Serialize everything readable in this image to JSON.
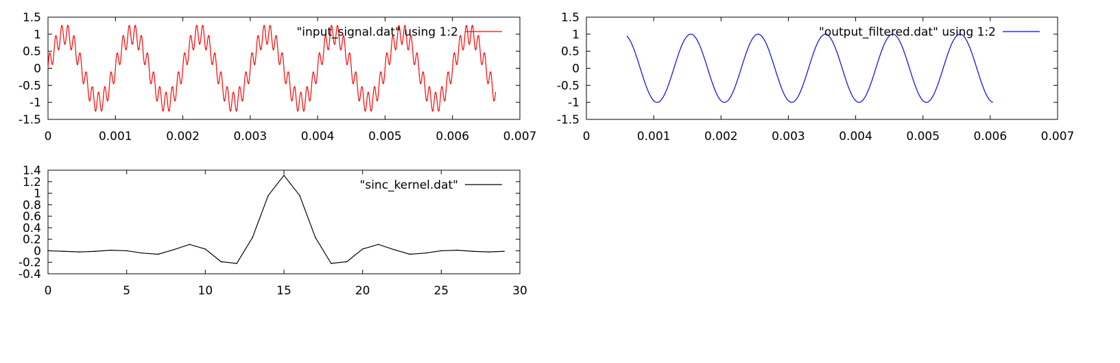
{
  "chart_data": [
    {
      "type": "line",
      "title": "",
      "xlabel": "",
      "ylabel": "",
      "xlim": [
        0,
        0.007
      ],
      "ylim": [
        -1.5,
        1.5
      ],
      "xticks": [
        "0",
        "0.001",
        "0.002",
        "0.003",
        "0.004",
        "0.005",
        "0.006",
        "0.007"
      ],
      "yticks": [
        "-1.5",
        "-1",
        "-0.5",
        "0",
        "0.5",
        "1",
        "1.5"
      ],
      "legend_position": "top-right",
      "grid": false,
      "series": [
        {
          "name": "\"input_signal.dat\" using 1:2",
          "color": "#ff0000",
          "generator": {
            "kind": "sum-of-sines",
            "components": [
              {
                "amplitude": 1.0,
                "frequency_hz": 1000
              },
              {
                "amplitude": 0.3,
                "frequency_hz": 11000
              }
            ],
            "x_start": 0,
            "x_end": 0.00664
          }
        }
      ]
    },
    {
      "type": "line",
      "title": "",
      "xlabel": "",
      "ylabel": "",
      "xlim": [
        0,
        0.007
      ],
      "ylim": [
        -1.5,
        1.5
      ],
      "xticks": [
        "0",
        "0.001",
        "0.002",
        "0.003",
        "0.004",
        "0.005",
        "0.006",
        "0.007"
      ],
      "yticks": [
        "-1.5",
        "-1",
        "-0.5",
        "0",
        "0.5",
        "1",
        "1.5"
      ],
      "legend_position": "top-right",
      "grid": false,
      "series": [
        {
          "name": "\"output_filtered.dat\" using 1:2",
          "color": "#0000ff",
          "generator": {
            "kind": "sine",
            "amplitude": 1.0,
            "frequency_hz": 1000,
            "phase_shift_s": 0.0003,
            "x_start": 0.0006,
            "x_end": 0.00604
          }
        }
      ]
    },
    {
      "type": "line",
      "title": "",
      "xlabel": "",
      "ylabel": "",
      "xlim": [
        0,
        30
      ],
      "ylim": [
        -0.4,
        1.4
      ],
      "xticks": [
        "0",
        "5",
        "10",
        "15",
        "20",
        "25",
        "30"
      ],
      "yticks": [
        "-0.4",
        "-0.2",
        "0",
        "0.2",
        "0.4",
        "0.6",
        "0.8",
        "1",
        "1.2",
        "1.4"
      ],
      "legend_position": "top-right",
      "grid": false,
      "series": [
        {
          "name": "\"sinc_kernel.dat\"",
          "color": "#000000",
          "x": [
            0,
            1,
            2,
            3,
            4,
            5,
            6,
            7,
            8,
            9,
            10,
            11,
            12,
            13,
            14,
            15,
            16,
            17,
            18,
            19,
            20,
            21,
            22,
            23,
            24,
            25,
            26,
            27,
            28,
            29
          ],
          "y": [
            0.0,
            -0.01,
            -0.02,
            -0.01,
            0.01,
            0.0,
            -0.04,
            -0.06,
            0.02,
            0.11,
            0.03,
            -0.19,
            -0.22,
            0.23,
            0.96,
            1.31,
            0.96,
            0.23,
            -0.22,
            -0.19,
            0.03,
            0.11,
            0.02,
            -0.06,
            -0.04,
            0.0,
            0.01,
            -0.01,
            -0.02,
            -0.01
          ]
        }
      ]
    }
  ]
}
